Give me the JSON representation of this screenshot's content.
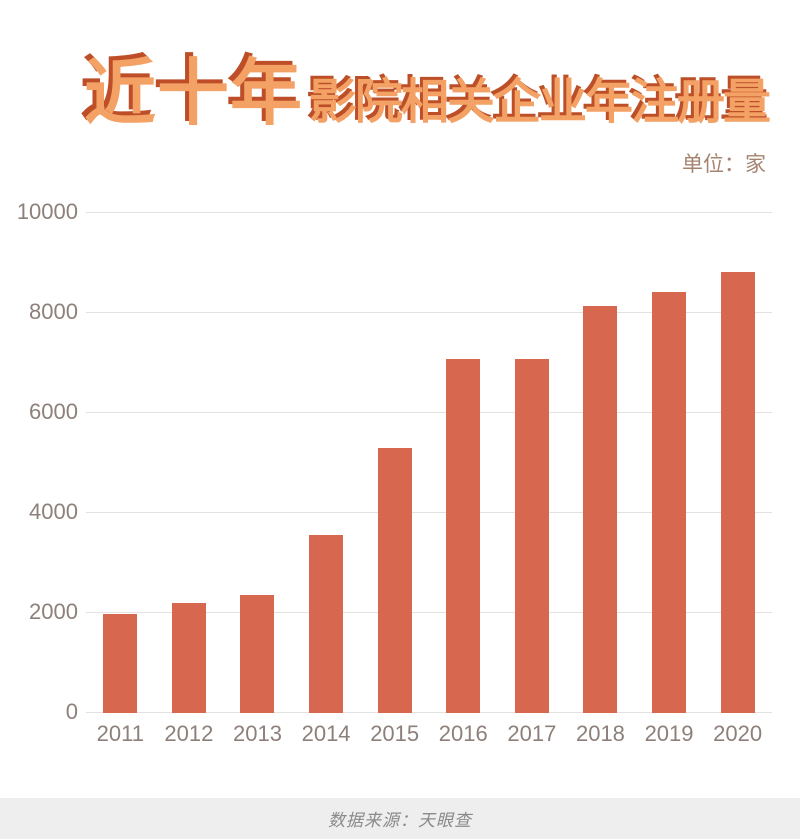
{
  "header": {
    "title_main": "近十年",
    "title_sub": "影院相关企业年注册量",
    "unit_label": "单位：家"
  },
  "footer": {
    "source_text": "数据来源：天眼查"
  },
  "colors": {
    "bar": "#d7684f",
    "title_fill": "#f3a164",
    "title_shadow": "#bd4e28",
    "axis_label": "#8d807b",
    "unit_text": "#a5846f",
    "gridline": "#e4e2e1",
    "footer_bg": "#eeeeee",
    "footer_text": "#8a8a8a"
  },
  "chart_data": {
    "type": "bar",
    "title": "近十年影院相关企业年注册量",
    "unit": "家",
    "categories": [
      "2011",
      "2012",
      "2013",
      "2014",
      "2015",
      "2016",
      "2017",
      "2018",
      "2019",
      "2020"
    ],
    "values": [
      1990,
      2210,
      2370,
      3570,
      5310,
      7090,
      7090,
      8140,
      8420,
      8820
    ],
    "yticks": [
      0,
      2000,
      4000,
      6000,
      8000,
      10000
    ],
    "ylim": [
      0,
      10000
    ],
    "xlabel": "",
    "ylabel": "",
    "grid": true,
    "legend": "none",
    "source": "天眼查"
  }
}
